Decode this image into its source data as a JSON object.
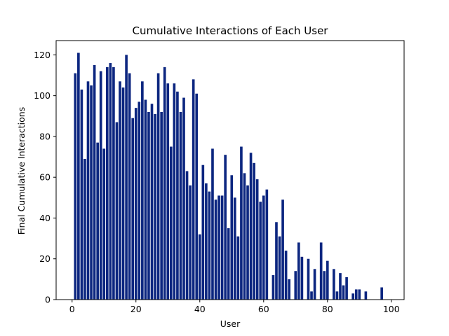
{
  "chart_data": {
    "type": "bar",
    "title": "Cumulative Interactions of Each User",
    "xlabel": "User",
    "ylabel": "Final Cumulative Interactions",
    "xlim": [
      -5,
      104
    ],
    "ylim": [
      0,
      127
    ],
    "xticks": [
      0,
      20,
      40,
      60,
      80,
      100
    ],
    "yticks": [
      0,
      20,
      40,
      60,
      80,
      100,
      120
    ],
    "bar_color": "#0c2680",
    "grid": false,
    "x": [
      1,
      2,
      3,
      4,
      5,
      6,
      7,
      8,
      9,
      10,
      11,
      12,
      13,
      14,
      15,
      16,
      17,
      18,
      19,
      20,
      21,
      22,
      23,
      24,
      25,
      26,
      27,
      28,
      29,
      30,
      31,
      32,
      33,
      34,
      35,
      36,
      37,
      38,
      39,
      40,
      41,
      42,
      43,
      44,
      45,
      46,
      47,
      48,
      49,
      50,
      51,
      52,
      53,
      54,
      55,
      56,
      57,
      58,
      59,
      60,
      61,
      62,
      63,
      64,
      65,
      66,
      67,
      68,
      69,
      70,
      71,
      72,
      73,
      74,
      75,
      76,
      77,
      78,
      79,
      80,
      81,
      82,
      83,
      84,
      85,
      86,
      87,
      88,
      89,
      90,
      91,
      92,
      93,
      94,
      95,
      96,
      97,
      98,
      99,
      100
    ],
    "values": [
      111,
      121,
      103,
      69,
      107,
      105,
      115,
      77,
      112,
      74,
      114,
      116,
      114,
      87,
      107,
      104,
      120,
      111,
      89,
      94,
      97,
      107,
      98,
      92,
      96,
      91,
      111,
      92,
      114,
      106,
      75,
      106,
      102,
      92,
      99,
      63,
      56,
      108,
      101,
      32,
      66,
      57,
      53,
      74,
      49,
      51,
      51,
      71,
      35,
      61,
      50,
      31,
      75,
      62,
      56,
      72,
      67,
      59,
      48,
      51,
      54,
      0,
      12,
      38,
      31,
      49,
      24,
      10,
      0,
      14,
      28,
      21,
      0,
      20,
      4,
      15,
      0,
      28,
      14,
      19,
      0,
      15,
      4,
      13,
      7,
      11,
      0,
      3,
      5,
      5,
      0,
      4,
      0,
      0,
      0,
      0,
      6,
      0,
      0,
      0
    ]
  }
}
